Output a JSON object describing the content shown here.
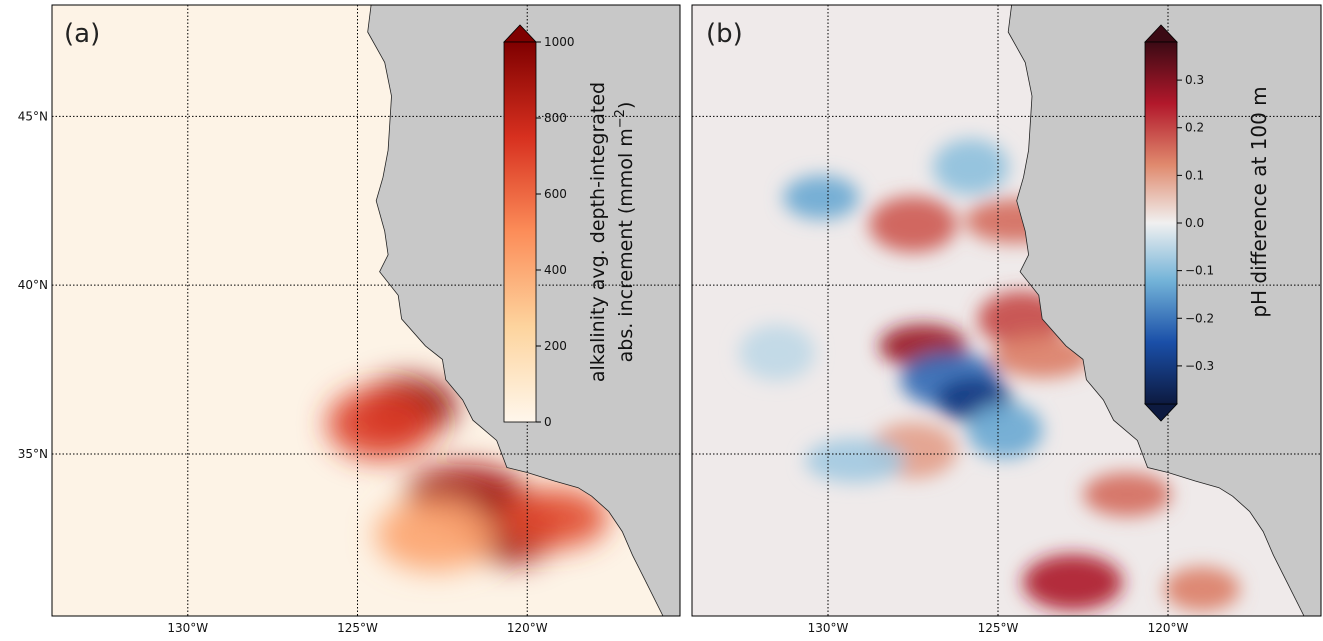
{
  "chart_data": [
    {
      "type": "heatmap",
      "panel_label": "(a)",
      "colormap": "OrRd",
      "colorbar": {
        "label_line1": "alkalinity avg. depth-integrated",
        "label_line2": "abs. increment (mmol m",
        "label_sup": "−2",
        "label_end": ")",
        "ticks": [
          "0",
          "200",
          "400",
          "600",
          "800",
          "1000"
        ],
        "tick_values": [
          0,
          200,
          400,
          600,
          800,
          1000
        ],
        "range": [
          0,
          1000
        ],
        "extend": "max",
        "colors": [
          "#fff7ec",
          "#fdd49e",
          "#fc8d59",
          "#d7301f",
          "#7f0000"
        ]
      },
      "blobs": [
        {
          "lon": -123.5,
          "lat": 36.4,
          "value": 980
        },
        {
          "lon": -124.3,
          "lat": 35.9,
          "value": 720
        },
        {
          "lon": -121.8,
          "lat": 33.8,
          "value": 900
        },
        {
          "lon": -120.5,
          "lat": 32.8,
          "value": 920
        },
        {
          "lon": -119.2,
          "lat": 33.1,
          "value": 680
        },
        {
          "lon": -122.7,
          "lat": 32.6,
          "value": 420
        }
      ]
    },
    {
      "type": "heatmap",
      "panel_label": "(b)",
      "colormap": "RdBu_r",
      "colorbar": {
        "label": "pH difference at 100 m",
        "ticks": [
          "−0.3",
          "−0.2",
          "−0.1",
          "0.0",
          "0.1",
          "0.2",
          "0.3"
        ],
        "tick_values": [
          -0.3,
          -0.2,
          -0.1,
          0.0,
          0.1,
          0.2,
          0.3
        ],
        "range": [
          -0.38,
          0.38
        ],
        "extend": "both",
        "colors": [
          "#0d1a40",
          "#1a4fa8",
          "#73b3d8",
          "#f0f0f0",
          "#e08a6e",
          "#b2182b",
          "#3b0a14"
        ]
      },
      "blobs": [
        {
          "lon": -130.2,
          "lat": 42.6,
          "value": -0.14
        },
        {
          "lon": -127.5,
          "lat": 41.8,
          "value": 0.18
        },
        {
          "lon": -124.5,
          "lat": 41.9,
          "value": 0.16
        },
        {
          "lon": -125.8,
          "lat": 43.5,
          "value": -0.1
        },
        {
          "lon": -127.2,
          "lat": 38.2,
          "value": 0.28
        },
        {
          "lon": -126.4,
          "lat": 37.2,
          "value": -0.22
        },
        {
          "lon": -125.7,
          "lat": 36.6,
          "value": -0.3
        },
        {
          "lon": -124.3,
          "lat": 39.0,
          "value": 0.2
        },
        {
          "lon": -123.7,
          "lat": 37.9,
          "value": 0.14
        },
        {
          "lon": -124.8,
          "lat": 35.7,
          "value": -0.14
        },
        {
          "lon": -121.2,
          "lat": 33.8,
          "value": 0.16
        },
        {
          "lon": -122.8,
          "lat": 31.2,
          "value": 0.26
        },
        {
          "lon": -119.0,
          "lat": 31.0,
          "value": 0.14
        },
        {
          "lon": -127.5,
          "lat": 35.1,
          "value": 0.1
        },
        {
          "lon": -129.2,
          "lat": 34.8,
          "value": -0.08
        },
        {
          "lon": -131.5,
          "lat": 38.0,
          "value": -0.05
        }
      ]
    }
  ],
  "axes": {
    "lat_ticks": [
      {
        "value": 45,
        "label": "45°N"
      },
      {
        "value": 40,
        "label": "40°N"
      },
      {
        "value": 35,
        "label": "35°N"
      }
    ],
    "lon_ticks": [
      {
        "value": -130,
        "label": "130°W"
      },
      {
        "value": -125,
        "label": "125°W"
      },
      {
        "value": -120,
        "label": "120°W"
      }
    ],
    "lon_range": [
      -134,
      -115.5
    ],
    "lat_range": [
      30.2,
      48.3
    ],
    "gridlines": true,
    "land_color": "#c8c8c8",
    "ocean_color": "#fdf3e6"
  }
}
